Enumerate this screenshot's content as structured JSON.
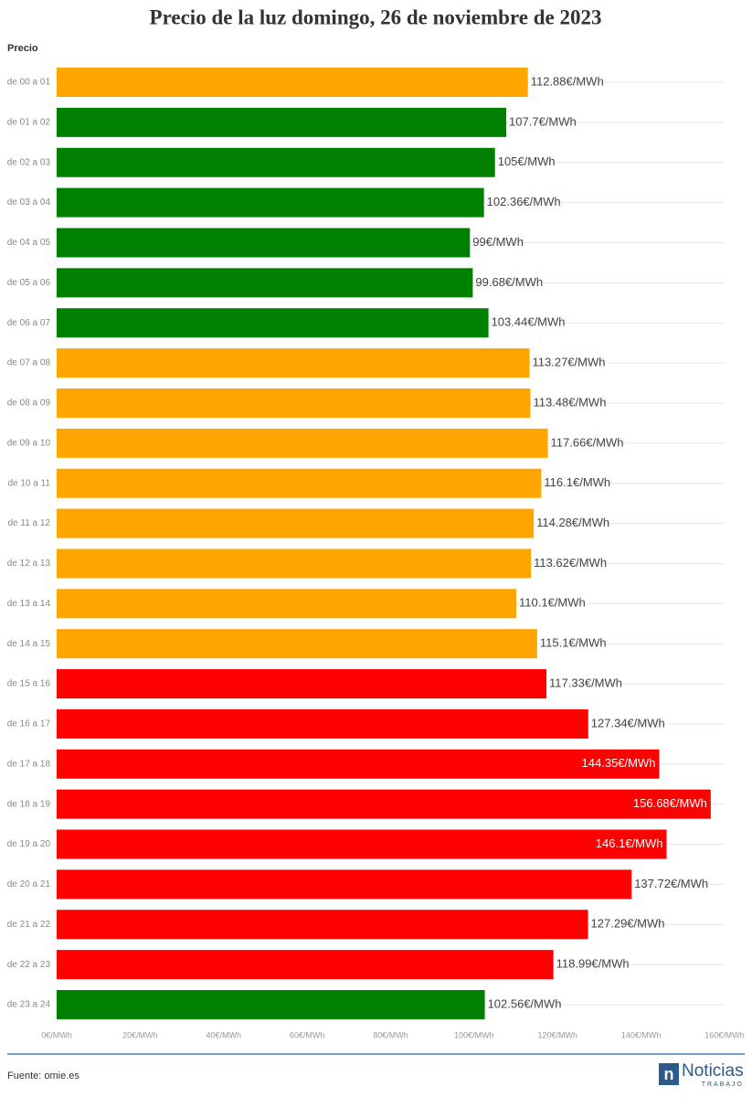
{
  "chart_data": {
    "type": "bar",
    "orientation": "horizontal",
    "title": "Precio de la luz domingo, 26 de noviembre de 2023",
    "y_label": "Precio",
    "categories": [
      "de 00 a 01",
      "de 01 a 02",
      "de 02 a 03",
      "de 03 a 04",
      "de 04 a 05",
      "de 05 a 06",
      "de 06 a 07",
      "de 07 a 08",
      "de 08 a 09",
      "de 09 a 10",
      "de 10 a 11",
      "de 11 a 12",
      "de 12 a 13",
      "de 13 a 14",
      "de 14 a 15",
      "de 15 a 16",
      "de 16 a 17",
      "de 17 a 18",
      "de 18 a 19",
      "de 19 a 20",
      "de 20 a 21",
      "de 21 a 22",
      "de 22 a 23",
      "de 23 a 24"
    ],
    "values": [
      112.88,
      107.7,
      105,
      102.36,
      99,
      99.68,
      103.44,
      113.27,
      113.48,
      117.66,
      116.1,
      114.28,
      113.62,
      110.1,
      115.1,
      117.33,
      127.34,
      144.35,
      156.68,
      146.1,
      137.72,
      127.29,
      118.99,
      102.56
    ],
    "value_labels": [
      "112.88€/MWh",
      "107.7€/MWh",
      "105€/MWh",
      "102.36€/MWh",
      "99€/MWh",
      "99.68€/MWh",
      "103.44€/MWh",
      "113.27€/MWh",
      "113.48€/MWh",
      "117.66€/MWh",
      "116.1€/MWh",
      "114.28€/MWh",
      "113.62€/MWh",
      "110.1€/MWh",
      "115.1€/MWh",
      "117.33€/MWh",
      "127.34€/MWh",
      "144.35€/MWh",
      "156.68€/MWh",
      "146.1€/MWh",
      "137.72€/MWh",
      "127.29€/MWh",
      "118.99€/MWh",
      "102.56€/MWh"
    ],
    "colors": [
      "#ffa500",
      "#008000",
      "#008000",
      "#008000",
      "#008000",
      "#008000",
      "#008000",
      "#ffa500",
      "#ffa500",
      "#ffa500",
      "#ffa500",
      "#ffa500",
      "#ffa500",
      "#ffa500",
      "#ffa500",
      "#ff0000",
      "#ff0000",
      "#ff0000",
      "#ff0000",
      "#ff0000",
      "#ff0000",
      "#ff0000",
      "#ff0000",
      "#008000"
    ],
    "xlim": [
      0,
      160
    ],
    "xticks": [
      {
        "value": 0,
        "label": "0€/MWh"
      },
      {
        "value": 20,
        "label": "20€/MWh"
      },
      {
        "value": 40,
        "label": "40€/MWh"
      },
      {
        "value": 60,
        "label": "60€/MWh"
      },
      {
        "value": 80,
        "label": "80€/MWh"
      },
      {
        "value": 100,
        "label": "100€/MWh"
      },
      {
        "value": 120,
        "label": "120€/MWh"
      },
      {
        "value": 140,
        "label": "140€/MWh"
      },
      {
        "value": 160,
        "label": "160€/MWh"
      }
    ]
  },
  "footer": {
    "source": "Fuente: omie.es",
    "logo_name": "Noticias",
    "logo_tagline": "TRABAJO"
  }
}
